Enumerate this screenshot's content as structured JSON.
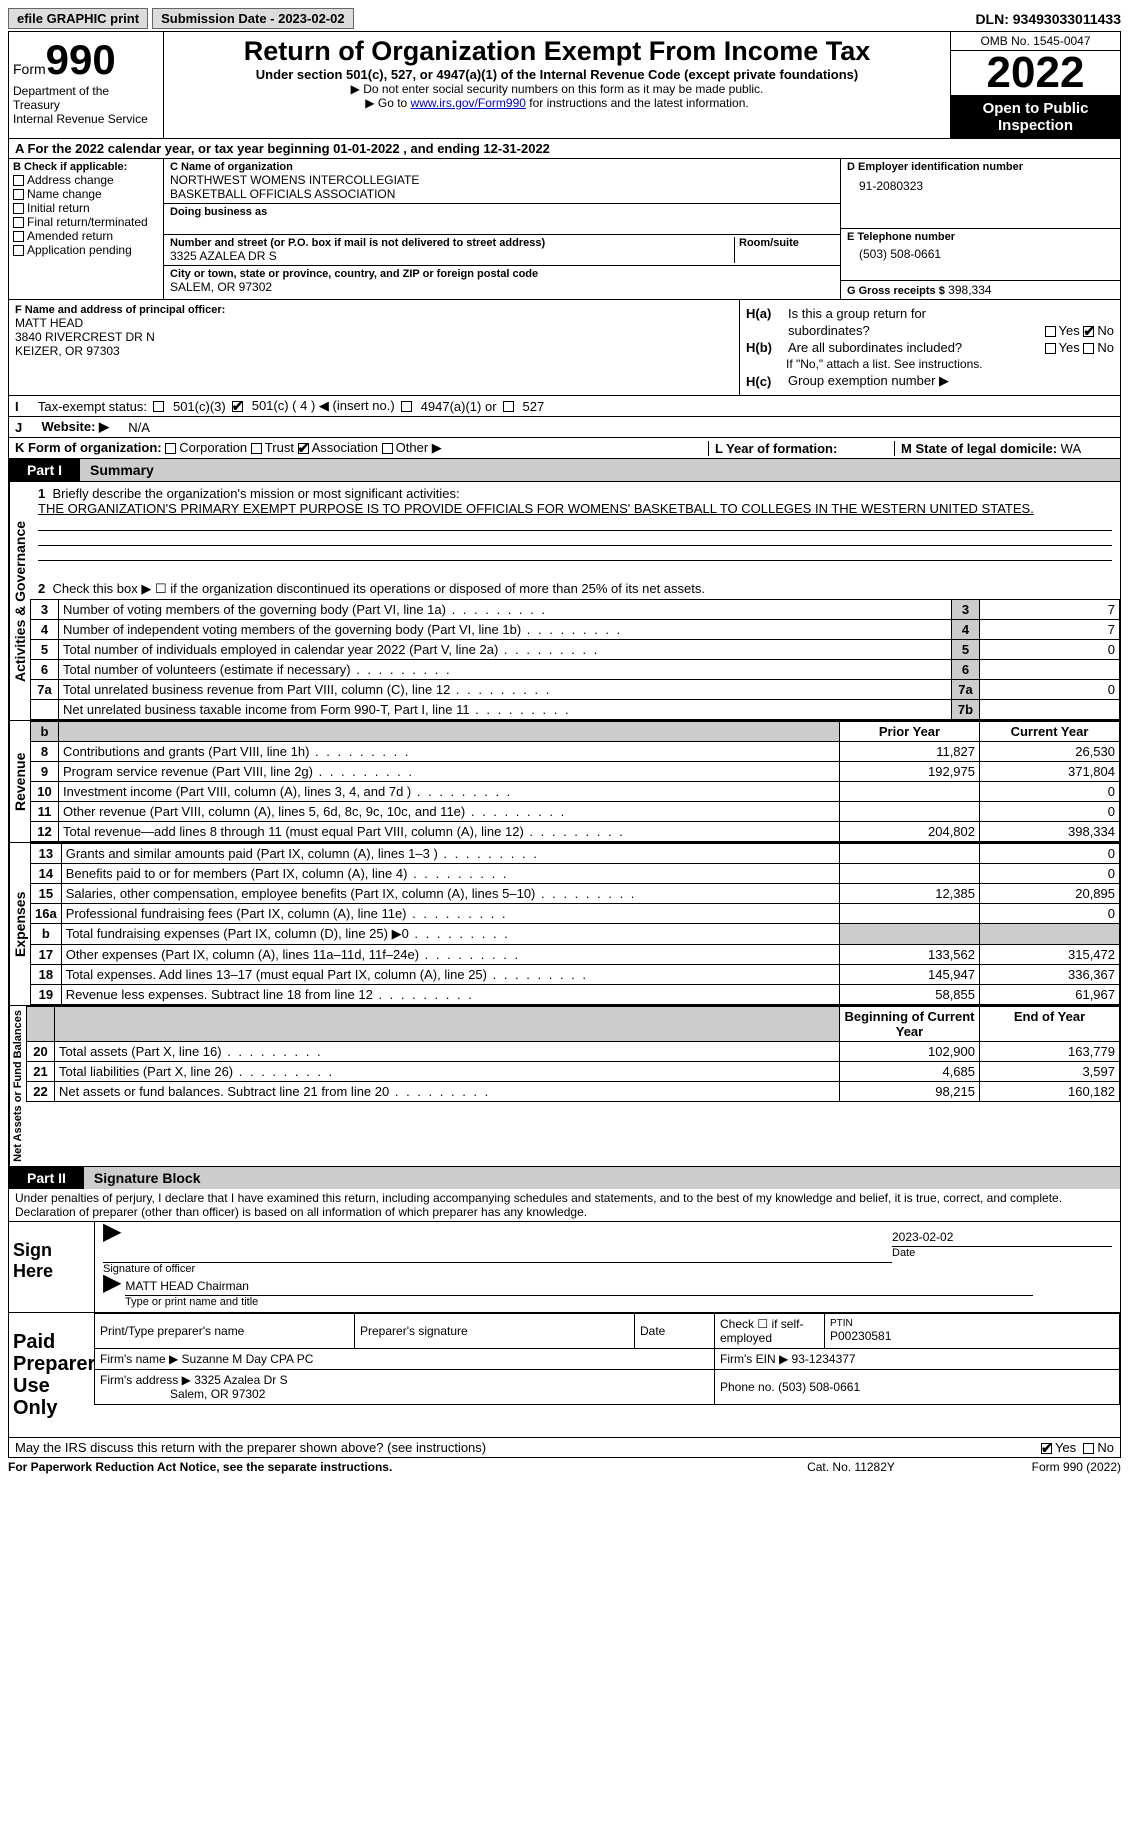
{
  "top": {
    "efile": "efile GRAPHIC print",
    "sub_label": "Submission Date - 2023-02-02",
    "dln": "DLN: 93493033011433"
  },
  "header": {
    "form": "Form",
    "form_num": "990",
    "dept": "Department of the Treasury",
    "irs_line": "Internal Revenue Service",
    "title": "Return of Organization Exempt From Income Tax",
    "sub1": "Under section 501(c), 527, or 4947(a)(1) of the Internal Revenue Code (except private foundations)",
    "sub2": "▶ Do not enter social security numbers on this form as it may be made public.",
    "sub3a": "▶ Go to ",
    "sub3_link": "www.irs.gov/Form990",
    "sub3b": " for instructions and the latest information.",
    "omb": "OMB No. 1545-0047",
    "year": "2022",
    "open": "Open to Public Inspection"
  },
  "a_line": "A For the 2022 calendar year, or tax year beginning 01-01-2022    , and ending 12-31-2022",
  "b": {
    "title": "B Check if applicable:",
    "items": [
      "Address change",
      "Name change",
      "Initial return",
      "Final return/terminated",
      "Amended return",
      "Application pending"
    ]
  },
  "c": {
    "lbl_name": "C Name of organization",
    "name1": "NORTHWEST WOMENS INTERCOLLEGIATE",
    "name2": "BASKETBALL OFFICIALS ASSOCIATION",
    "dba_lbl": "Doing business as",
    "addr_lbl": "Number and street (or P.O. box if mail is not delivered to street address)",
    "room_lbl": "Room/suite",
    "addr": "3325 AZALEA DR S",
    "city_lbl": "City or town, state or province, country, and ZIP or foreign postal code",
    "city": "SALEM, OR  97302"
  },
  "d": {
    "ein_lbl": "D Employer identification number",
    "ein": "91-2080323",
    "tel_lbl": "E Telephone number",
    "tel": "(503) 508-0661",
    "gross_lbl": "G Gross receipts $",
    "gross": "398,334"
  },
  "f": {
    "lbl": "F Name and address of principal officer:",
    "name": "MATT HEAD",
    "addr1": "3840 RIVERCREST DR N",
    "addr2": "KEIZER, OR  97303"
  },
  "h": {
    "a1": "Is this a group return for",
    "a2": "subordinates?",
    "b1": "Are all subordinates included?",
    "note": "If \"No,\" attach a list. See instructions.",
    "c": "Group exemption number ▶"
  },
  "i_line": {
    "lbl": "Tax-exempt status:",
    "opts": [
      "501(c)(3)",
      "501(c) ( 4 ) ◀ (insert no.)",
      "4947(a)(1) or",
      "527"
    ]
  },
  "j_line": {
    "lbl": "Website: ▶",
    "val": "N/A"
  },
  "k_line": {
    "lbl": "K Form of organization:",
    "opts": [
      "Corporation",
      "Trust",
      "Association",
      "Other ▶"
    ]
  },
  "l_line": {
    "lbl": "L Year of formation:"
  },
  "m_line": {
    "lbl": "M State of legal domicile:",
    "val": "WA"
  },
  "part1": {
    "num": "Part I",
    "title": "Summary"
  },
  "p1": {
    "l1a": "Briefly describe the organization's mission or most significant activities:",
    "l1b": "THE ORGANIZATION'S PRIMARY EXEMPT PURPOSE IS TO PROVIDE OFFICIALS FOR WOMENS' BASKETBALL TO COLLEGES IN THE WESTERN UNITED STATES.",
    "l2": "Check this box ▶ ☐ if the organization discontinued its operations or disposed of more than 25% of its net assets.",
    "rows_ag": [
      {
        "n": "3",
        "t": "Number of voting members of the governing body (Part VI, line 1a)",
        "box": "3",
        "v": "7"
      },
      {
        "n": "4",
        "t": "Number of independent voting members of the governing body (Part VI, line 1b)",
        "box": "4",
        "v": "7"
      },
      {
        "n": "5",
        "t": "Total number of individuals employed in calendar year 2022 (Part V, line 2a)",
        "box": "5",
        "v": "0"
      },
      {
        "n": "6",
        "t": "Total number of volunteers (estimate if necessary)",
        "box": "6",
        "v": ""
      },
      {
        "n": "7a",
        "t": "Total unrelated business revenue from Part VIII, column (C), line 12",
        "box": "7a",
        "v": "0"
      },
      {
        "n": "",
        "t": "Net unrelated business taxable income from Form 990-T, Part I, line 11",
        "box": "7b",
        "v": ""
      }
    ],
    "hdr_prior": "Prior Year",
    "hdr_curr": "Current Year",
    "rev": [
      {
        "n": "8",
        "t": "Contributions and grants (Part VIII, line 1h)",
        "p": "11,827",
        "c": "26,530"
      },
      {
        "n": "9",
        "t": "Program service revenue (Part VIII, line 2g)",
        "p": "192,975",
        "c": "371,804"
      },
      {
        "n": "10",
        "t": "Investment income (Part VIII, column (A), lines 3, 4, and 7d )",
        "p": "",
        "c": "0"
      },
      {
        "n": "11",
        "t": "Other revenue (Part VIII, column (A), lines 5, 6d, 8c, 9c, 10c, and 11e)",
        "p": "",
        "c": "0"
      },
      {
        "n": "12",
        "t": "Total revenue—add lines 8 through 11 (must equal Part VIII, column (A), line 12)",
        "p": "204,802",
        "c": "398,334"
      }
    ],
    "exp": [
      {
        "n": "13",
        "t": "Grants and similar amounts paid (Part IX, column (A), lines 1–3 )",
        "p": "",
        "c": "0"
      },
      {
        "n": "14",
        "t": "Benefits paid to or for members (Part IX, column (A), line 4)",
        "p": "",
        "c": "0"
      },
      {
        "n": "15",
        "t": "Salaries, other compensation, employee benefits (Part IX, column (A), lines 5–10)",
        "p": "12,385",
        "c": "20,895"
      },
      {
        "n": "16a",
        "t": "Professional fundraising fees (Part IX, column (A), line 11e)",
        "p": "",
        "c": "0"
      },
      {
        "n": "b",
        "t": "Total fundraising expenses (Part IX, column (D), line 25) ▶0",
        "p": "shade",
        "c": "shade"
      },
      {
        "n": "17",
        "t": "Other expenses (Part IX, column (A), lines 11a–11d, 11f–24e)",
        "p": "133,562",
        "c": "315,472"
      },
      {
        "n": "18",
        "t": "Total expenses. Add lines 13–17 (must equal Part IX, column (A), line 25)",
        "p": "145,947",
        "c": "336,367"
      },
      {
        "n": "19",
        "t": "Revenue less expenses. Subtract line 18 from line 12",
        "p": "58,855",
        "c": "61,967"
      }
    ],
    "hdr_boy": "Beginning of Current Year",
    "hdr_eoy": "End of Year",
    "net": [
      {
        "n": "20",
        "t": "Total assets (Part X, line 16)",
        "p": "102,900",
        "c": "163,779"
      },
      {
        "n": "21",
        "t": "Total liabilities (Part X, line 26)",
        "p": "4,685",
        "c": "3,597"
      },
      {
        "n": "22",
        "t": "Net assets or fund balances. Subtract line 21 from line 20",
        "p": "98,215",
        "c": "160,182"
      }
    ]
  },
  "vlabels": {
    "ag": "Activities & Governance",
    "rev": "Revenue",
    "exp": "Expenses",
    "net": "Net Assets or Fund Balances"
  },
  "part2": {
    "num": "Part II",
    "title": "Signature Block"
  },
  "penalty": "Under penalties of perjury, I declare that I have examined this return, including accompanying schedules and statements, and to the best of my knowledge and belief, it is true, correct, and complete. Declaration of preparer (other than officer) is based on all information of which preparer has any knowledge.",
  "sign": {
    "here": "Sign Here",
    "sig_of": "Signature of officer",
    "date": "Date",
    "date_val": "2023-02-02",
    "name": "MATT HEAD  Chairman",
    "name_lbl": "Type or print name and title"
  },
  "paid": {
    "title": "Paid Preparer Use Only",
    "h1": "Print/Type preparer's name",
    "h2": "Preparer's signature",
    "h3": "Date",
    "h4": "Check ☐ if self-employed",
    "h5_lbl": "PTIN",
    "h5": "P00230581",
    "firm_lbl": "Firm's name   ▶",
    "firm": "Suzanne M Day CPA PC",
    "ein_lbl": "Firm's EIN ▶",
    "ein": "93-1234377",
    "addr_lbl": "Firm's address ▶",
    "addr1": "3325 Azalea Dr S",
    "addr2": "Salem, OR  97302",
    "ph_lbl": "Phone no.",
    "ph": "(503) 508-0661"
  },
  "may_irs": "May the IRS discuss this return with the preparer shown above? (see instructions)",
  "footer": {
    "l": "For Paperwork Reduction Act Notice, see the separate instructions.",
    "m": "Cat. No. 11282Y",
    "r": "Form 990 (2022)"
  }
}
